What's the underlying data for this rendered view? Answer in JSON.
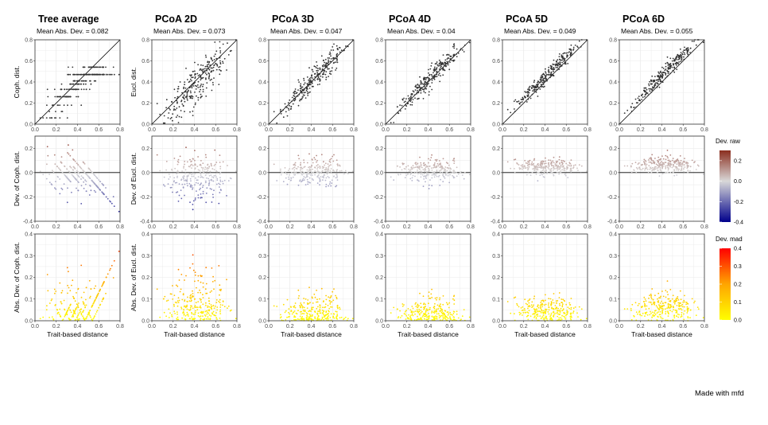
{
  "chart_data": {
    "type": "scatter",
    "panel_titles": [
      "Tree average",
      "PCoA 2D",
      "PCoA 3D",
      "PCoA 4D",
      "PCoA 5D",
      "PCoA 6D"
    ],
    "mean_abs_dev": [
      "Mean Abs. Dev. = 0.082",
      "Mean Abs. Dev. = 0.073",
      "Mean Abs. Dev. = 0.047",
      "Mean Abs. Dev. = 0.04",
      "Mean Abs. Dev. = 0.049",
      "Mean Abs. Dev. = 0.055"
    ],
    "row1_ylabels": [
      "Coph. dist.",
      "Eucl. dist."
    ],
    "row2_ylabels": [
      "Dev. of Coph. dist.",
      "Dev. of Eucl. dist."
    ],
    "row3_ylabels": [
      "Abs. Dev. of Coph. dist.",
      "Abs. Dev. of Eucl. dist."
    ],
    "xlabel": "Trait-based distance",
    "xlim": [
      0,
      0.8
    ],
    "x_ticks": [
      0.0,
      0.2,
      0.4,
      0.6,
      0.8
    ],
    "row1": {
      "ylim": [
        0,
        0.8
      ],
      "ticks": [
        0.0,
        0.2,
        0.4,
        0.6,
        0.8
      ],
      "reference": "identity line y = x"
    },
    "row2": {
      "ylim": [
        -0.4,
        0.3
      ],
      "ticks": [
        -0.4,
        -0.2,
        0.0,
        0.2
      ],
      "reference": "horizontal line y = 0"
    },
    "row3": {
      "ylim": [
        0,
        0.4
      ],
      "ticks": [
        0.0,
        0.1,
        0.2,
        0.3,
        0.4
      ]
    },
    "mean_abs_dev_values": [
      0.082,
      0.073,
      0.047,
      0.04,
      0.049,
      0.055
    ],
    "cophenetic_levels_tree_average": [
      0.06,
      0.12,
      0.18,
      0.26,
      0.33,
      0.38,
      0.41,
      0.47,
      0.54
    ],
    "legend_raw": {
      "title": "Dev. raw",
      "ticks": [
        0.2,
        0.0,
        -0.2,
        -0.4
      ],
      "tick_labels": [
        "0.2",
        "0.0",
        "-0.2",
        "-0.4"
      ],
      "colors": [
        "#8b2e1f",
        "#d8d8d8",
        "#00008b"
      ]
    },
    "legend_mad": {
      "title": "Dev. mad",
      "ticks": [
        0.4,
        0.3,
        0.2,
        0.1,
        0.0
      ],
      "tick_labels": [
        "0.4",
        "0.3",
        "0.2",
        "0.1",
        "0.0"
      ],
      "colors": [
        "#ff0000",
        "#ffa500",
        "#ffff00"
      ]
    },
    "credit": "Made with mfd"
  }
}
